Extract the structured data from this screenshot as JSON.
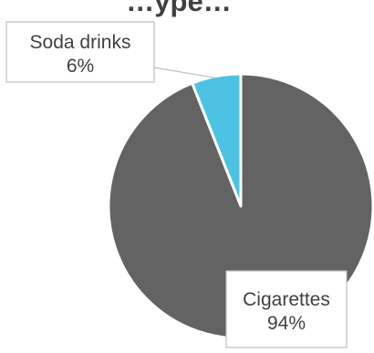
{
  "chart_data": {
    "type": "pie",
    "title": "…ype…",
    "slices": [
      {
        "label": "Soda drinks",
        "value": 6,
        "value_label": "6%",
        "color": "#4cc3e3"
      },
      {
        "label": "Cigarettes",
        "value": 94,
        "value_label": "94%",
        "color": "#636363"
      }
    ],
    "start_angle_deg": 0,
    "direction": "counterclockwise",
    "slice_border_color": "#ffffff",
    "label_box_border_color": "#bfbfbf",
    "leader_line_color": "#bfbfbf",
    "legend": "none"
  }
}
